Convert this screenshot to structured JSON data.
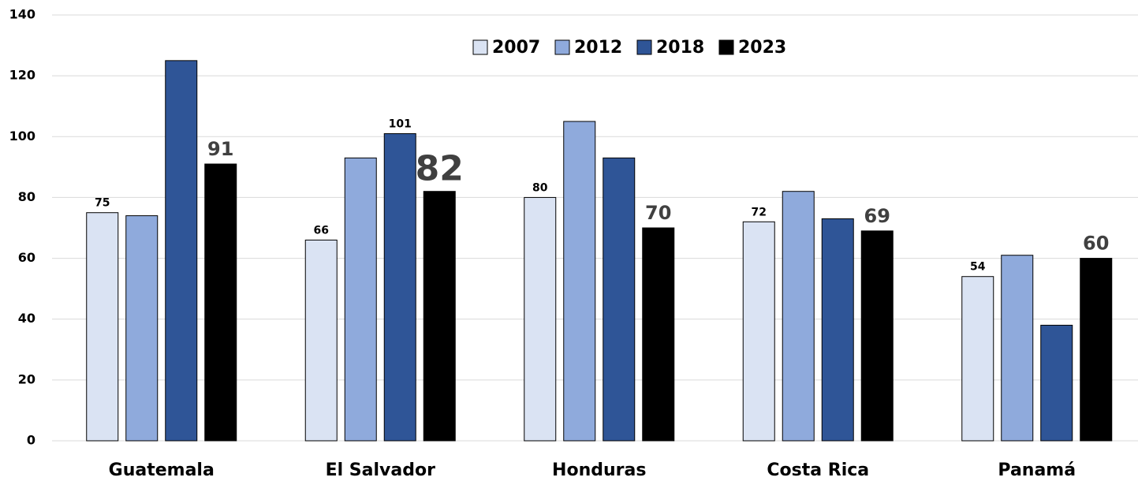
{
  "chart_data": {
    "type": "bar",
    "categories": [
      "Guatemala",
      "El Salvador",
      "Honduras",
      "Costa Rica",
      "Panamá"
    ],
    "series": [
      {
        "name": "2007",
        "color": "#dae3f3",
        "values": [
          75,
          66,
          80,
          72,
          54
        ],
        "data_labels": [
          true,
          true,
          true,
          true,
          true
        ]
      },
      {
        "name": "2012",
        "color": "#8faadc",
        "values": [
          74,
          93,
          105,
          82,
          61
        ],
        "data_labels": [
          false,
          false,
          false,
          false,
          false
        ]
      },
      {
        "name": "2018",
        "color": "#2f5597",
        "values": [
          125,
          101,
          93,
          73,
          38
        ],
        "data_labels": [
          false,
          true,
          false,
          false,
          false
        ]
      },
      {
        "name": "2023",
        "color": "#000000",
        "values": [
          91,
          82,
          70,
          69,
          60
        ],
        "data_labels": [
          true,
          true,
          true,
          true,
          true
        ]
      }
    ],
    "ylim": [
      0,
      140
    ],
    "yticks": [
      0,
      20,
      40,
      60,
      80,
      100,
      120,
      140
    ],
    "grid": true,
    "legend": "top"
  }
}
